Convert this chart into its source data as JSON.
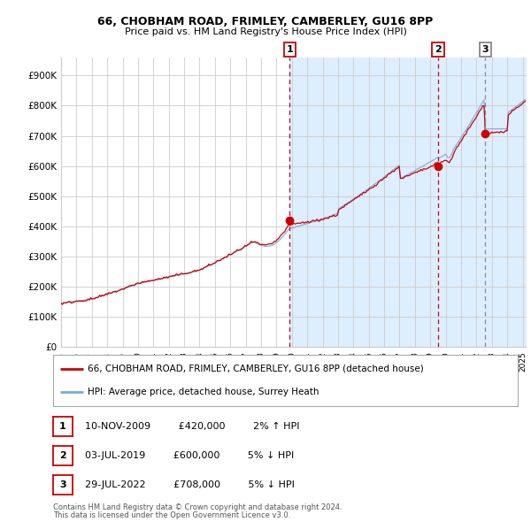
{
  "title1": "66, CHOBHAM ROAD, FRIMLEY, CAMBERLEY, GU16 8PP",
  "title2": "Price paid vs. HM Land Registry's House Price Index (HPI)",
  "ylabel_ticks": [
    "£0",
    "£100K",
    "£200K",
    "£300K",
    "£400K",
    "£500K",
    "£600K",
    "£700K",
    "£800K",
    "£900K"
  ],
  "ytick_values": [
    0,
    100000,
    200000,
    300000,
    400000,
    500000,
    600000,
    700000,
    800000,
    900000
  ],
  "ylim": [
    0,
    950000
  ],
  "xlim_start": 1995.0,
  "xlim_end": 2025.2,
  "sale_dates": [
    2009.86,
    2019.5,
    2022.57
  ],
  "sale_prices": [
    420000,
    600000,
    708000
  ],
  "sale_labels": [
    "1",
    "2",
    "3"
  ],
  "red_vlines": [
    2009.86,
    2019.5
  ],
  "grey_vline": 2022.57,
  "shaded_start": 2009.86,
  "legend_red_label": "66, CHOBHAM ROAD, FRIMLEY, CAMBERLEY, GU16 8PP (detached house)",
  "legend_blue_label": "HPI: Average price, detached house, Surrey Heath",
  "table_rows": [
    {
      "num": "1",
      "date": "10-NOV-2009",
      "price": "£420,000",
      "pct": "2% ↑ HPI"
    },
    {
      "num": "2",
      "date": "03-JUL-2019",
      "price": "£600,000",
      "pct": "5% ↓ HPI"
    },
    {
      "num": "3",
      "date": "29-JUL-2022",
      "price": "£708,000",
      "pct": "5% ↓ HPI"
    }
  ],
  "footnote1": "Contains HM Land Registry data © Crown copyright and database right 2024.",
  "footnote2": "This data is licensed under the Open Government Licence v3.0.",
  "line_color_red": "#cc0000",
  "line_color_blue": "#7aaadd",
  "shade_color": "#ddeeff",
  "grid_color": "#cccccc",
  "bg_color": "#ffffff"
}
